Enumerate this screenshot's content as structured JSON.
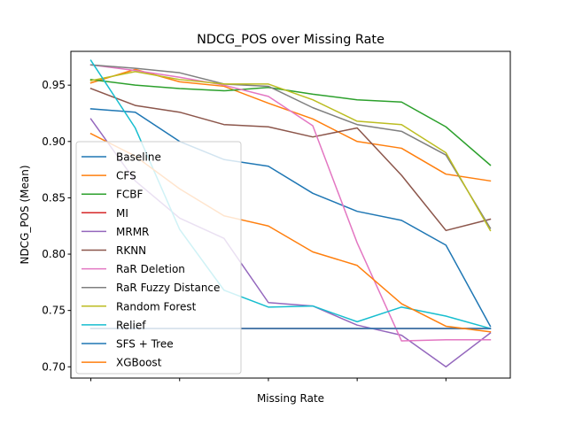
{
  "chart_data": {
    "type": "line",
    "title": "NDCG_POS over Missing Rate",
    "xlabel": "Missing Rate",
    "ylabel": "NDCG_POS (Mean)",
    "x": [
      0,
      1,
      2,
      3,
      4,
      5,
      6,
      7,
      8,
      9
    ],
    "xlim": [
      -0.45,
      9.45
    ],
    "x_ticks": [
      0,
      2,
      4,
      6,
      8
    ],
    "x_tick_labels": [
      "",
      "",
      "",
      "",
      ""
    ],
    "ylim": [
      0.69,
      0.98
    ],
    "y_ticks": [
      0.7,
      0.75,
      0.8,
      0.85,
      0.9,
      0.95
    ],
    "y_tick_labels": [
      "0.70",
      "0.75",
      "0.80",
      "0.85",
      "0.90",
      "0.95"
    ],
    "grid": false,
    "legend_position": "lower-left",
    "series": [
      {
        "name": "Baseline",
        "color": "#1f77b4",
        "values": [
          0.929,
          0.926,
          0.9,
          0.884,
          0.878,
          0.854,
          0.838,
          0.83,
          0.808,
          0.736
        ]
      },
      {
        "name": "CFS",
        "color": "#ff7f0e",
        "values": [
          0.952,
          0.964,
          0.953,
          0.949,
          0.934,
          0.92,
          0.9,
          0.894,
          0.871,
          0.865
        ]
      },
      {
        "name": "FCBF",
        "color": "#2ca02c",
        "values": [
          0.955,
          0.95,
          0.947,
          0.945,
          0.948,
          0.942,
          0.937,
          0.935,
          0.913,
          0.879
        ]
      },
      {
        "name": "MI",
        "color": "#d62728",
        "values": [
          0.734,
          0.734,
          0.734,
          0.734,
          0.734,
          0.734,
          0.734,
          0.734,
          0.734,
          0.734
        ]
      },
      {
        "name": "MRMR",
        "color": "#9467bd",
        "values": [
          0.92,
          0.865,
          0.832,
          0.814,
          0.757,
          0.754,
          0.737,
          0.728,
          0.7,
          0.73
        ]
      },
      {
        "name": "RKNN",
        "color": "#8c564b",
        "values": [
          0.947,
          0.932,
          0.926,
          0.915,
          0.913,
          0.904,
          0.912,
          0.87,
          0.821,
          0.831
        ]
      },
      {
        "name": "RaR Deletion",
        "color": "#e377c2",
        "values": [
          0.968,
          0.963,
          0.957,
          0.95,
          0.94,
          0.914,
          0.81,
          0.723,
          0.724,
          0.724
        ]
      },
      {
        "name": "RaR Fuzzy Distance",
        "color": "#7f7f7f",
        "values": [
          0.968,
          0.965,
          0.961,
          0.951,
          0.949,
          0.93,
          0.915,
          0.909,
          0.888,
          0.823
        ]
      },
      {
        "name": "Random Forest",
        "color": "#bcbd22",
        "values": [
          0.954,
          0.962,
          0.955,
          0.951,
          0.951,
          0.937,
          0.918,
          0.915,
          0.89,
          0.821
        ]
      },
      {
        "name": "Relief",
        "color": "#17becf",
        "values": [
          0.972,
          0.912,
          0.822,
          0.768,
          0.753,
          0.754,
          0.74,
          0.753,
          0.745,
          0.734
        ]
      },
      {
        "name": "SFS + Tree",
        "color": "#1f77b4",
        "values": [
          0.734,
          0.734,
          0.734,
          0.734,
          0.734,
          0.734,
          0.734,
          0.734,
          0.734,
          0.734
        ]
      },
      {
        "name": "XGBoost",
        "color": "#ff7f0e",
        "values": [
          0.907,
          0.887,
          0.858,
          0.834,
          0.825,
          0.802,
          0.79,
          0.756,
          0.736,
          0.731
        ]
      }
    ]
  }
}
